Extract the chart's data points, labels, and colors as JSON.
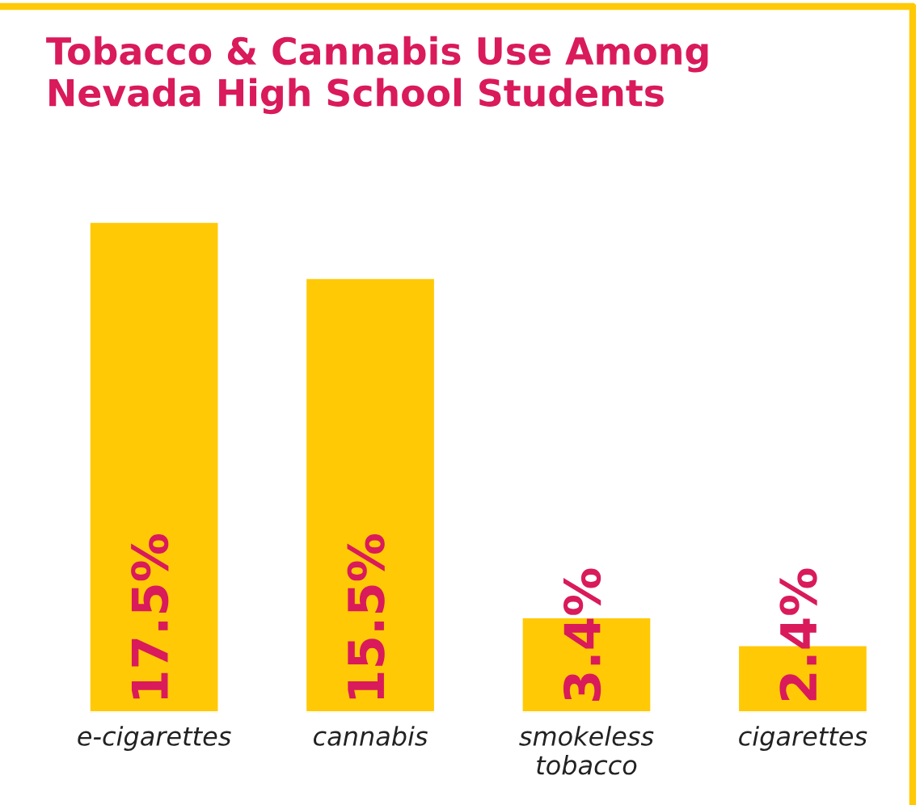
{
  "chart_data": {
    "type": "bar",
    "title": "Tobacco & Cannabis Use Among\nNevada High School Students",
    "categories": [
      "e-cigarettes",
      "cannabis",
      "smokeless\ntobacco",
      "cigarettes"
    ],
    "values": [
      17.5,
      15.5,
      3.4,
      2.4
    ],
    "color": "#ffc906",
    "value_labels": [
      "17.5%",
      "15.5%",
      "3.4%",
      "2.4%"
    ],
    "grid": false,
    "legend": false
  }
}
